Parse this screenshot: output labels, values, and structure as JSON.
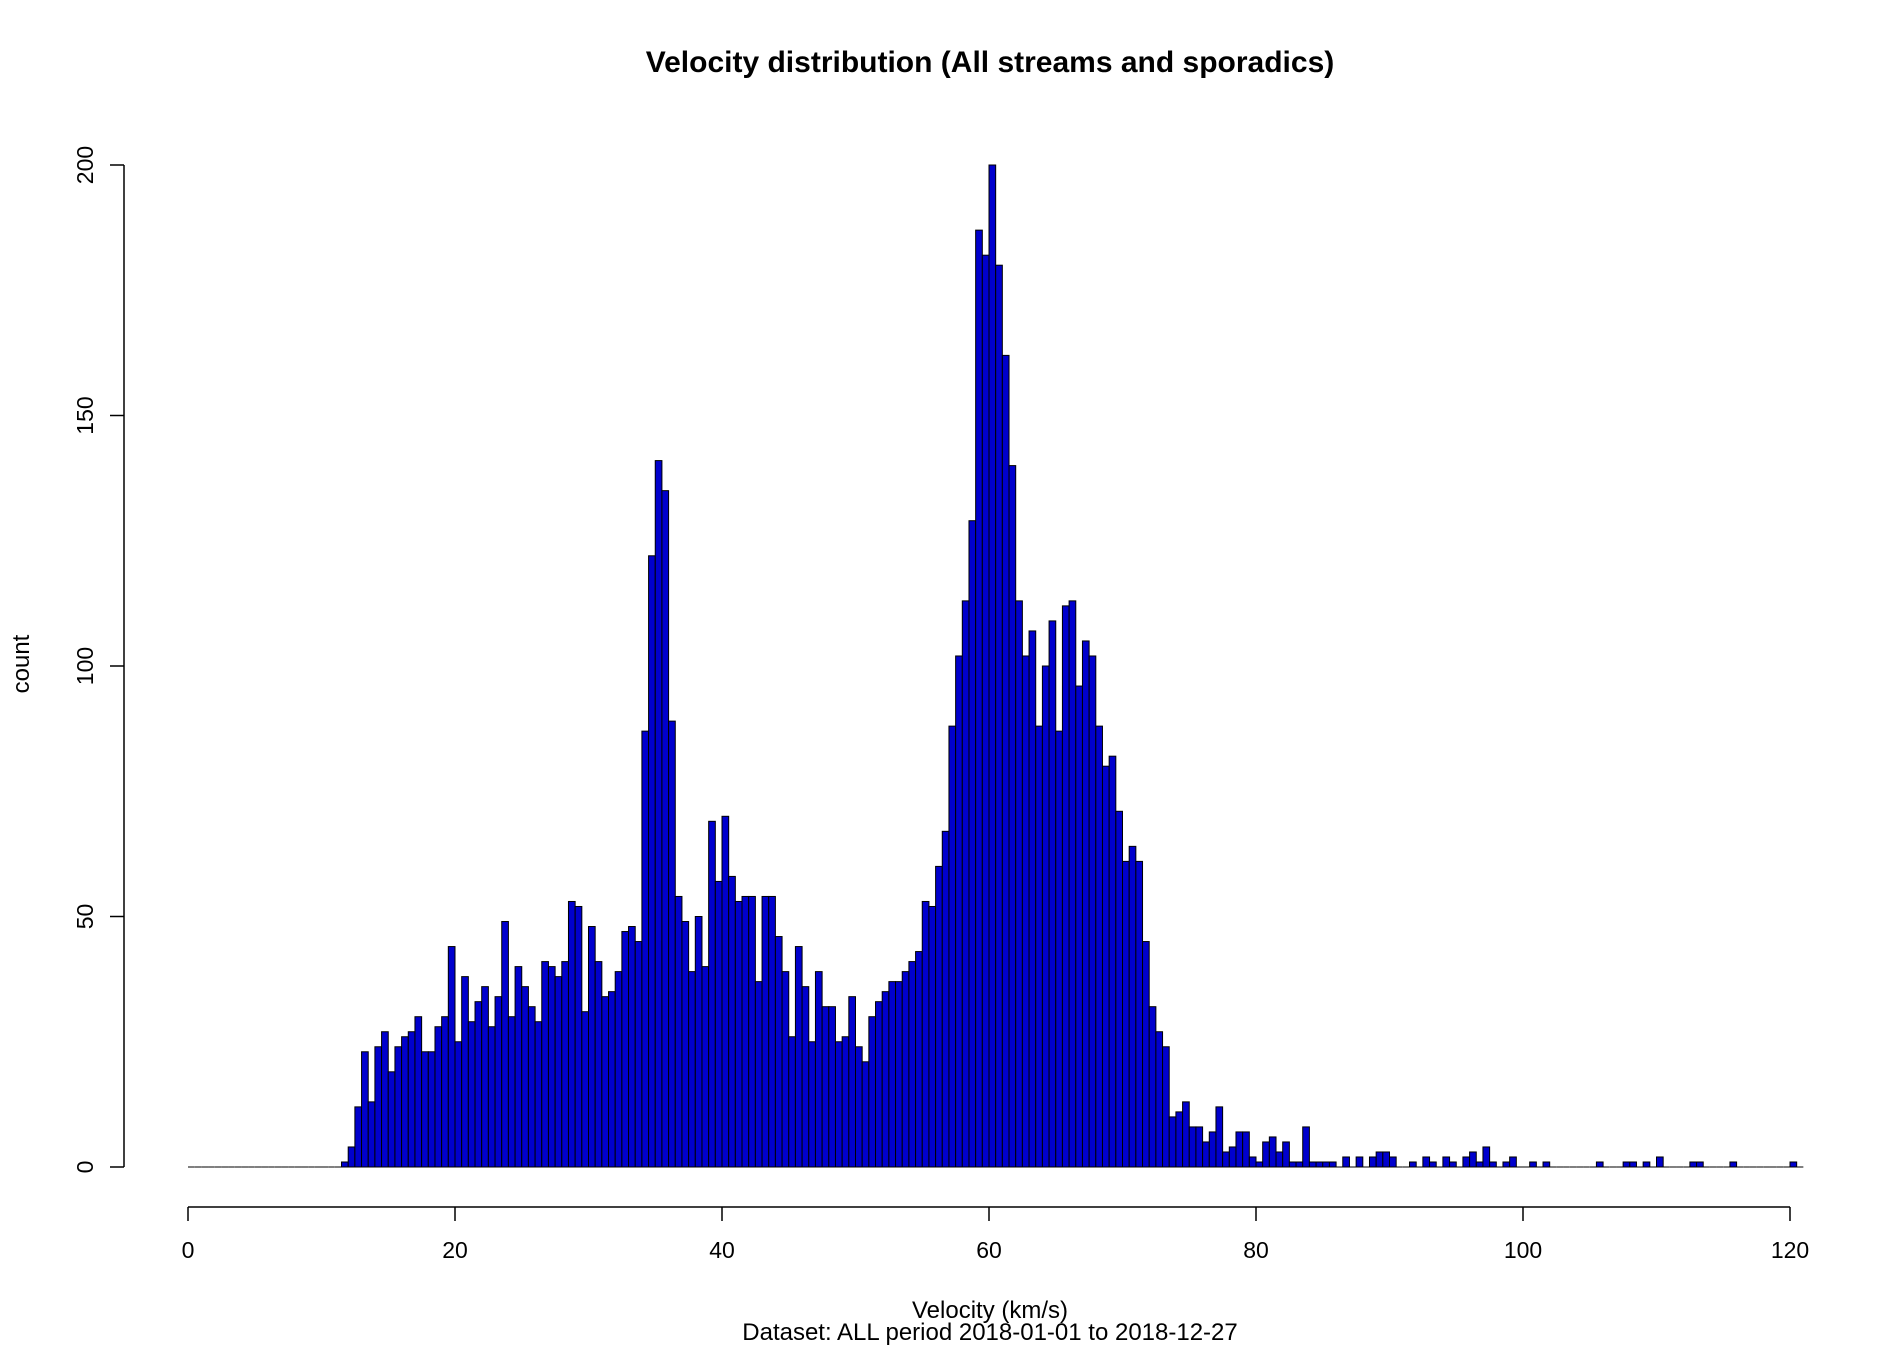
{
  "chart_data": {
    "type": "bar",
    "title": "Velocity distribution (All streams and sporadics)",
    "xlabel": "Velocity (km/s)",
    "subtitle": "Dataset: ALL period 2018-01-01 to 2018-12-27",
    "ylabel": "count",
    "xlim": [
      0,
      120
    ],
    "ylim": [
      0,
      200
    ],
    "x_ticks": [
      0,
      20,
      40,
      60,
      80,
      100,
      120
    ],
    "y_ticks": [
      0,
      50,
      100,
      150,
      200
    ],
    "bin_width": 0.5,
    "bin_start": 0,
    "grid": false,
    "bar_color": "#0000CD",
    "counts": [
      0,
      0,
      0,
      0,
      0,
      0,
      0,
      0,
      0,
      0,
      0,
      0,
      0,
      0,
      0,
      0,
      0,
      0,
      0,
      0,
      0,
      0,
      0,
      1,
      4,
      12,
      23,
      13,
      24,
      27,
      19,
      24,
      26,
      27,
      30,
      23,
      23,
      28,
      30,
      44,
      25,
      38,
      29,
      33,
      36,
      28,
      34,
      49,
      30,
      40,
      36,
      32,
      29,
      41,
      40,
      38,
      41,
      53,
      52,
      31,
      48,
      41,
      34,
      35,
      39,
      47,
      48,
      45,
      87,
      122,
      141,
      135,
      89,
      54,
      49,
      39,
      50,
      40,
      69,
      57,
      70,
      58,
      53,
      54,
      54,
      37,
      54,
      54,
      46,
      39,
      26,
      44,
      36,
      25,
      39,
      32,
      32,
      25,
      26,
      34,
      24,
      21,
      30,
      33,
      35,
      37,
      37,
      39,
      41,
      43,
      53,
      52,
      60,
      67,
      88,
      102,
      113,
      129,
      187,
      182,
      200,
      180,
      162,
      140,
      113,
      102,
      107,
      88,
      100,
      109,
      87,
      112,
      113,
      96,
      105,
      102,
      88,
      80,
      82,
      71,
      61,
      64,
      61,
      45,
      32,
      27,
      24,
      10,
      11,
      13,
      8,
      8,
      5,
      7,
      12,
      3,
      4,
      7,
      7,
      2,
      1,
      5,
      6,
      3,
      5,
      1,
      1,
      8,
      1,
      1,
      1,
      1,
      0,
      2,
      0,
      2,
      0,
      2,
      3,
      3,
      2,
      0,
      0,
      1,
      0,
      2,
      1,
      0,
      2,
      1,
      0,
      2,
      3,
      1,
      4,
      1,
      0,
      1,
      2,
      0,
      0,
      1,
      0,
      1,
      0,
      0,
      0,
      0,
      0,
      0,
      0,
      1,
      0,
      0,
      0,
      1,
      1,
      0,
      1,
      0,
      2,
      0,
      0,
      0,
      0,
      1,
      1,
      0,
      0,
      0,
      0,
      1,
      0,
      0,
      0,
      0,
      0,
      0,
      0,
      0,
      1,
      0
    ]
  }
}
